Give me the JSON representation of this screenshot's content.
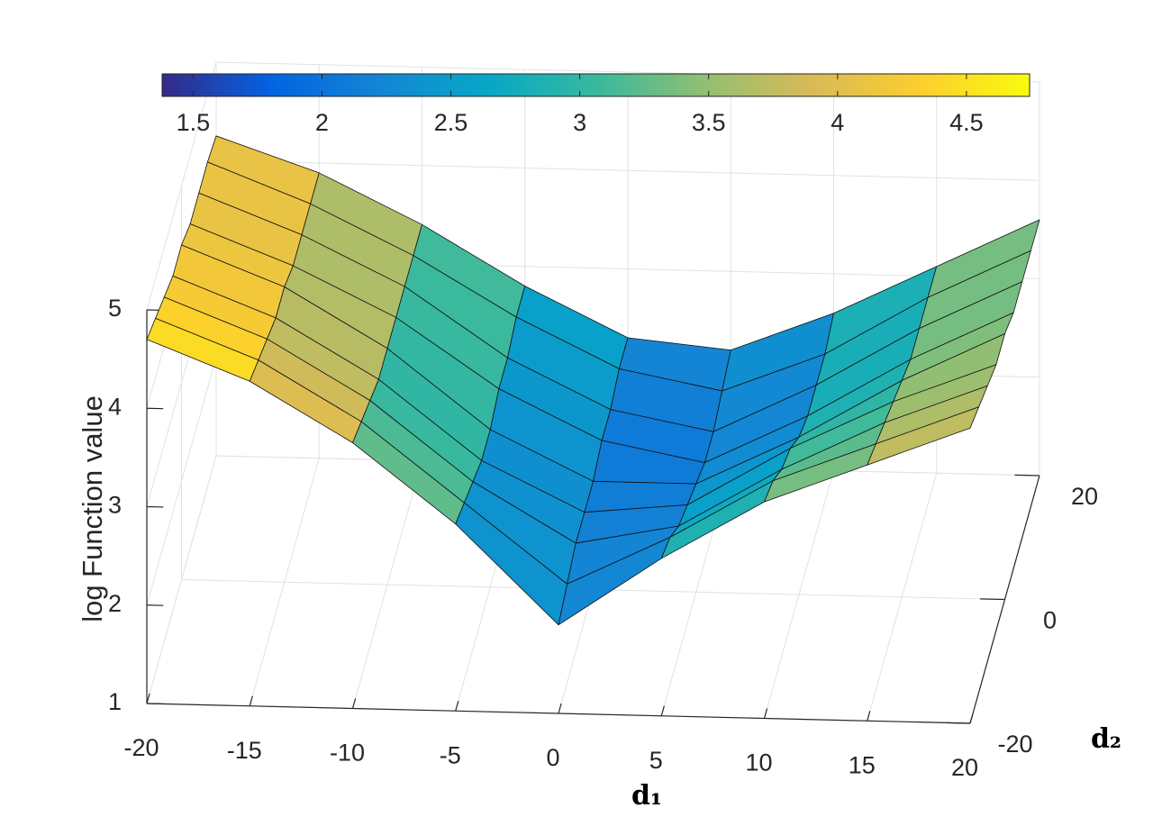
{
  "chart_data": {
    "type": "surface",
    "xlabel": "d₁",
    "ylabel": "d₂",
    "zlabel": "log Function value",
    "x": [
      -20,
      -15,
      -10,
      -5,
      0,
      5,
      10,
      15,
      20
    ],
    "y": [
      -20,
      -15,
      -10,
      -5,
      0,
      5,
      10,
      15,
      20
    ],
    "z": [
      [
        4.7,
        4.3,
        3.7,
        2.9,
        1.9,
        2.6,
        3.2,
        3.6,
        4.0
      ],
      [
        4.6,
        4.2,
        3.6,
        2.8,
        2.0,
        2.5,
        3.1,
        3.5,
        3.9
      ],
      [
        4.5,
        4.1,
        3.5,
        2.7,
        2.1,
        2.3,
        2.9,
        3.4,
        3.8
      ],
      [
        4.4,
        4.0,
        3.4,
        2.6,
        2.1,
        2.2,
        2.8,
        3.3,
        3.7
      ],
      [
        4.4,
        4.0,
        3.4,
        2.6,
        2.1,
        2.1,
        2.6,
        3.2,
        3.7
      ],
      [
        4.3,
        3.9,
        3.4,
        2.7,
        2.2,
        2.0,
        2.5,
        3.1,
        3.6
      ],
      [
        4.3,
        3.9,
        3.4,
        2.7,
        2.2,
        2.0,
        2.5,
        3.1,
        3.6
      ],
      [
        4.3,
        3.9,
        3.4,
        2.8,
        2.3,
        2.1,
        2.5,
        3.1,
        3.6
      ],
      [
        4.25,
        3.9,
        3.4,
        2.8,
        2.3,
        2.2,
        2.6,
        3.1,
        3.6
      ]
    ],
    "xlim": [
      -20,
      20
    ],
    "xticks": [
      -20,
      -15,
      -10,
      -5,
      0,
      5,
      10,
      15,
      20
    ],
    "ylim": [
      -20,
      20
    ],
    "yticks": [
      -20,
      0,
      20
    ],
    "zlim": [
      1,
      5
    ],
    "zticks": [
      1,
      2,
      3,
      4,
      5
    ],
    "clim": [
      1.38,
      4.745
    ],
    "cticks": [
      1.5,
      2,
      2.5,
      3,
      3.5,
      4,
      4.5
    ],
    "colormap": [
      "#352a87",
      "#0363e1",
      "#1485d4",
      "#06a7c6",
      "#38b99e",
      "#92bf73",
      "#d9ba56",
      "#fcce2e",
      "#f9fb0e"
    ],
    "grid": true,
    "colorbar": "top"
  }
}
